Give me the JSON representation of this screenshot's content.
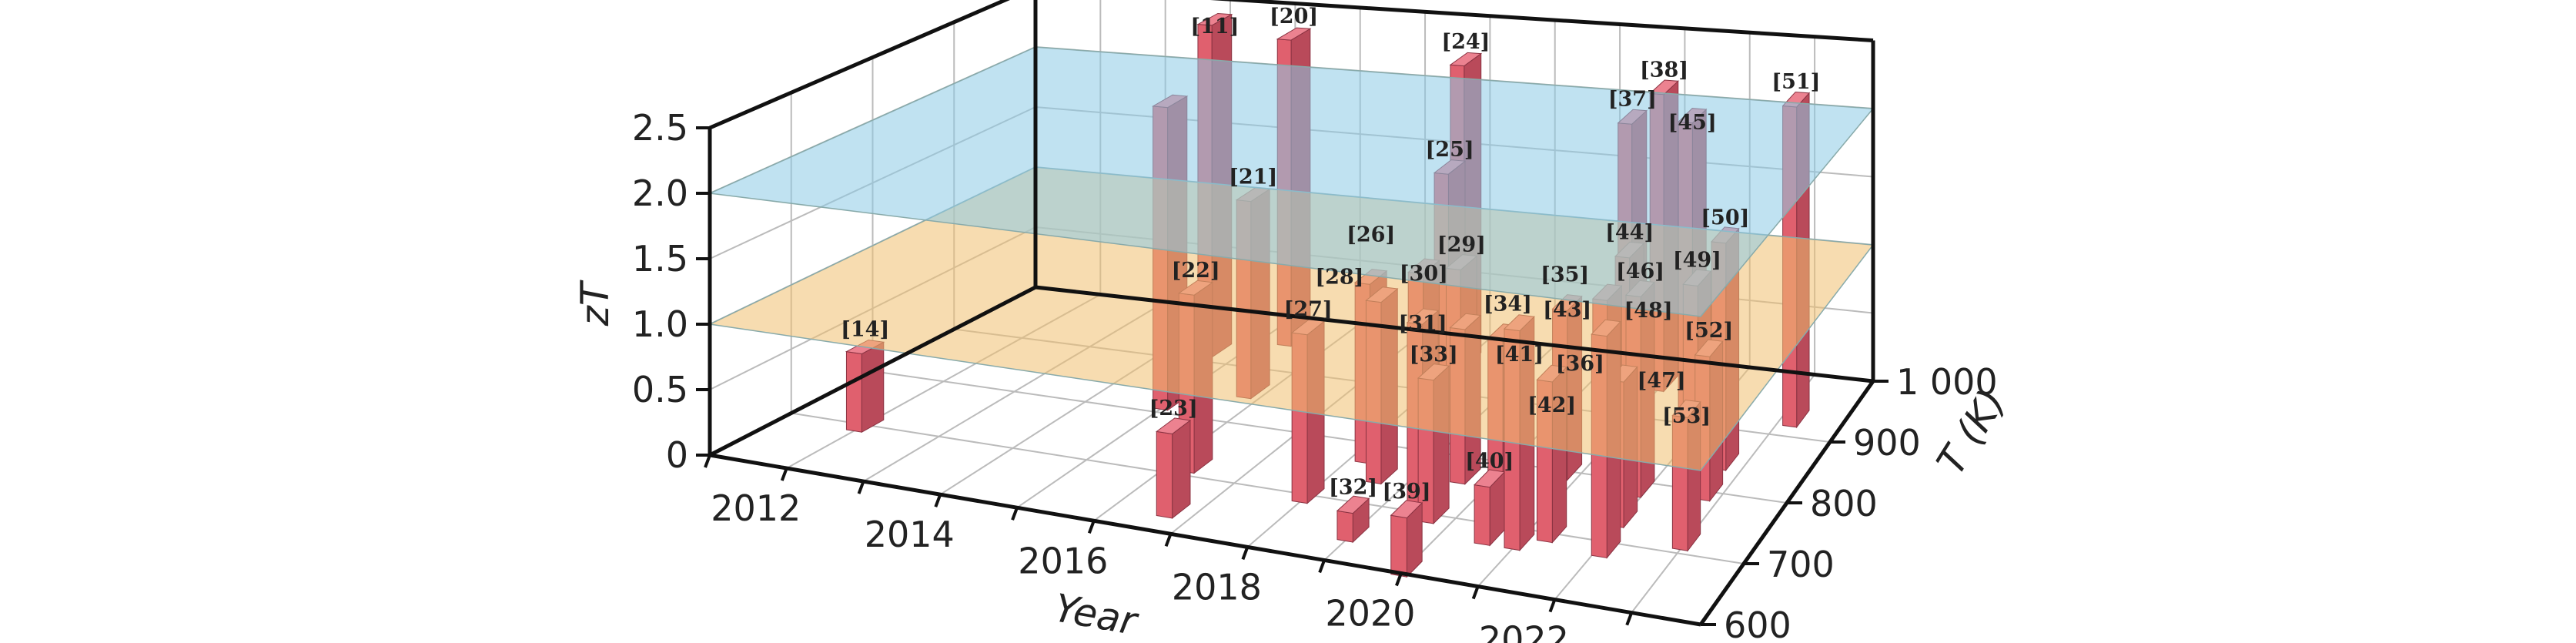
{
  "chart_data": {
    "type": "bar3d",
    "title": "",
    "xlabel": "Year",
    "ylabel": "T (K)",
    "zlabel": "zT",
    "xlim": [
      2011,
      2023.9
    ],
    "ylim": [
      600,
      1000
    ],
    "zlim": [
      0,
      2.5
    ],
    "x_ticks": [
      "2012",
      "2014",
      "2016",
      "2018",
      "2020",
      "2022"
    ],
    "y_ticks": [
      "600",
      "700",
      "800",
      "900",
      "1 000"
    ],
    "z_ticks": [
      "0",
      "0.5",
      "1.0",
      "1.5",
      "2.0",
      "2.5"
    ],
    "grid": true,
    "reference_planes": [
      {
        "zT": 1.0,
        "color": "#f0c070"
      },
      {
        "zT": 2.0,
        "color": "#8ccbe6"
      }
    ],
    "bar_color": "#e0606e",
    "bars": [
      {
        "label": "[14]",
        "year": 2012.0,
        "T": 700,
        "zT": 0.6
      },
      {
        "label": "[11]",
        "year": 2014.6,
        "T": 923,
        "zT": 2.6
      },
      {
        "label": "",
        "year": 2015.0,
        "T": 820,
        "zT": 2.3
      },
      {
        "label": "[20]",
        "year": 2015.4,
        "T": 960,
        "zT": 2.4
      },
      {
        "label": "[21]",
        "year": 2015.8,
        "T": 860,
        "zT": 1.5
      },
      {
        "label": "[22]",
        "year": 2016.3,
        "T": 720,
        "zT": 1.3
      },
      {
        "label": "[23]",
        "year": 2016.7,
        "T": 640,
        "zT": 0.6
      },
      {
        "label": "[24]",
        "year": 2018.0,
        "T": 960,
        "zT": 2.3
      },
      {
        "label": "[25]",
        "year": 2018.3,
        "T": 900,
        "zT": 1.7
      },
      {
        "label": "[26]",
        "year": 2018.2,
        "T": 780,
        "zT": 1.3
      },
      {
        "label": "[27]",
        "year": 2018.0,
        "T": 700,
        "zT": 1.2
      },
      {
        "label": "[28]",
        "year": 2018.6,
        "T": 750,
        "zT": 1.3
      },
      {
        "label": "[29]",
        "year": 2018.9,
        "T": 850,
        "zT": 1.2
      },
      {
        "label": "[30]",
        "year": 2019.1,
        "T": 760,
        "zT": 1.5
      },
      {
        "label": "[31]",
        "year": 2019.4,
        "T": 720,
        "zT": 1.3
      },
      {
        "label": "[32]",
        "year": 2019.0,
        "T": 650,
        "zT": 0.2
      },
      {
        "label": "[33]",
        "year": 2019.7,
        "T": 700,
        "zT": 1.0
      },
      {
        "label": "[34]",
        "year": 2019.6,
        "T": 770,
        "zT": 1.1
      },
      {
        "label": "[35]",
        "year": 2021.0,
        "T": 850,
        "zT": 1.1
      },
      {
        "label": "[36]",
        "year": 2020.2,
        "T": 760,
        "zT": 1.1
      },
      {
        "label": "[37]",
        "year": 2020.6,
        "T": 950,
        "zT": 2.0
      },
      {
        "label": "[38]",
        "year": 2021.0,
        "T": 960,
        "zT": 2.2
      },
      {
        "label": "[39]",
        "year": 2020.0,
        "T": 610,
        "zT": 0.4
      },
      {
        "label": "[40]",
        "year": 2020.6,
        "T": 680,
        "zT": 0.4
      },
      {
        "label": "[41]",
        "year": 2021.0,
        "T": 680,
        "zT": 1.5
      },
      {
        "label": "[42]",
        "year": 2021.3,
        "T": 700,
        "zT": 1.1
      },
      {
        "label": "[43]",
        "year": 2020.8,
        "T": 800,
        "zT": 1.2
      },
      {
        "label": "[44]",
        "year": 2021.1,
        "T": 880,
        "zT": 1.3
      },
      {
        "label": "[45]",
        "year": 2021.8,
        "T": 910,
        "zT": 2.2
      },
      {
        "label": "[46]",
        "year": 2021.9,
        "T": 790,
        "zT": 1.4
      },
      {
        "label": "[47]",
        "year": 2022.0,
        "T": 740,
        "zT": 1.0
      },
      {
        "label": "[48]",
        "year": 2022.1,
        "T": 690,
        "zT": 1.5
      },
      {
        "label": "[49]",
        "year": 2022.5,
        "T": 820,
        "zT": 1.4
      },
      {
        "label": "[50]",
        "year": 2022.7,
        "T": 850,
        "zT": 1.6
      },
      {
        "label": "[51]",
        "year": 2023.2,
        "T": 930,
        "zT": 2.3
      },
      {
        "label": "[52]",
        "year": 2022.8,
        "T": 800,
        "zT": 1.0
      },
      {
        "label": "[53]",
        "year": 2023.0,
        "T": 720,
        "zT": 0.9
      }
    ]
  }
}
